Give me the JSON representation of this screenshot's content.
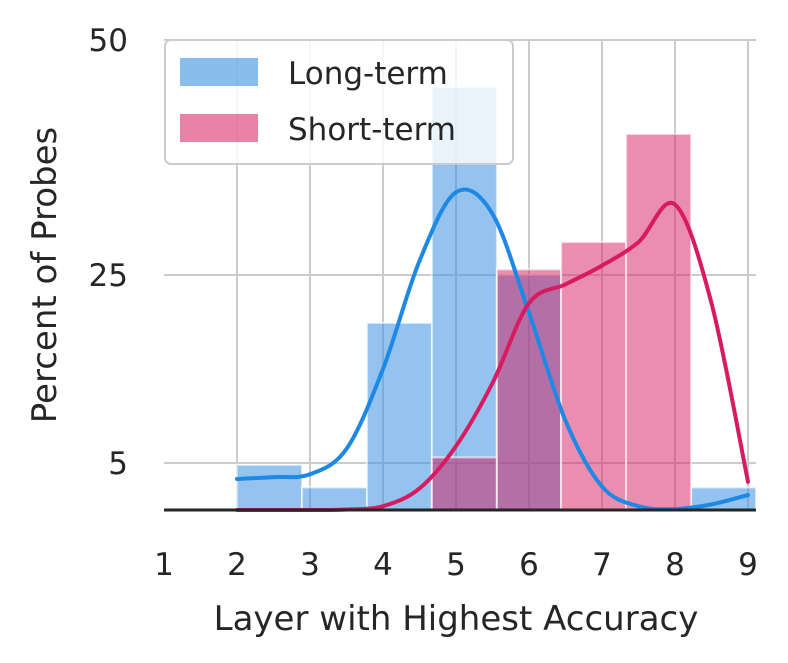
{
  "chart_data": {
    "type": "bar",
    "xlabel": "Layer with Highest Accuracy",
    "ylabel": "Percent of Probes",
    "xlim": [
      1,
      9
    ],
    "ylim": [
      0,
      50
    ],
    "xticks": [
      1,
      2,
      3,
      4,
      5,
      6,
      7,
      8,
      9
    ],
    "yticks": [
      5,
      25,
      50
    ],
    "grid": true,
    "legend_position": "top-left",
    "colors": {
      "long_term": "#3a92e0",
      "short_term": "#d81b60"
    },
    "series": [
      {
        "name": "Long-term",
        "bins": [
          {
            "x0": 2.0,
            "x1": 2.89,
            "value": 4.8
          },
          {
            "x0": 2.89,
            "x1": 3.78,
            "value": 2.4
          },
          {
            "x0": 3.78,
            "x1": 4.67,
            "value": 19.9
          },
          {
            "x0": 4.67,
            "x1": 5.56,
            "value": 45.0
          },
          {
            "x0": 5.56,
            "x1": 6.44,
            "value": 25.0
          },
          {
            "x0": 6.44,
            "x1": 7.33,
            "value": 0
          },
          {
            "x0": 7.33,
            "x1": 8.22,
            "value": 0
          },
          {
            "x0": 8.22,
            "x1": 9.11,
            "value": 2.4
          }
        ],
        "kde": [
          [
            2.0,
            3.3
          ],
          [
            2.5,
            3.5
          ],
          [
            3.0,
            3.8
          ],
          [
            3.5,
            6.5
          ],
          [
            4.0,
            15.0
          ],
          [
            4.5,
            26.5
          ],
          [
            5.0,
            33.8
          ],
          [
            5.5,
            31.5
          ],
          [
            6.0,
            21.0
          ],
          [
            6.5,
            9.5
          ],
          [
            7.0,
            2.5
          ],
          [
            7.5,
            0.4
          ],
          [
            8.0,
            0.1
          ],
          [
            8.5,
            0.6
          ],
          [
            9.0,
            1.6
          ]
        ]
      },
      {
        "name": "Short-term",
        "bins": [
          {
            "x0": 4.67,
            "x1": 5.56,
            "value": 5.6
          },
          {
            "x0": 5.56,
            "x1": 6.44,
            "value": 25.6
          },
          {
            "x0": 6.44,
            "x1": 7.33,
            "value": 28.5
          },
          {
            "x0": 7.33,
            "x1": 8.22,
            "value": 40.0
          }
        ],
        "kde": [
          [
            2.0,
            0.0
          ],
          [
            3.0,
            0.0
          ],
          [
            3.5,
            0.05
          ],
          [
            4.0,
            0.4
          ],
          [
            4.5,
            2.3
          ],
          [
            5.0,
            6.8
          ],
          [
            5.5,
            13.5
          ],
          [
            6.0,
            22.0
          ],
          [
            6.5,
            24.0
          ],
          [
            7.0,
            26.0
          ],
          [
            7.5,
            28.5
          ],
          [
            8.0,
            32.5
          ],
          [
            8.5,
            22.0
          ],
          [
            9.0,
            3.0
          ]
        ]
      }
    ]
  }
}
